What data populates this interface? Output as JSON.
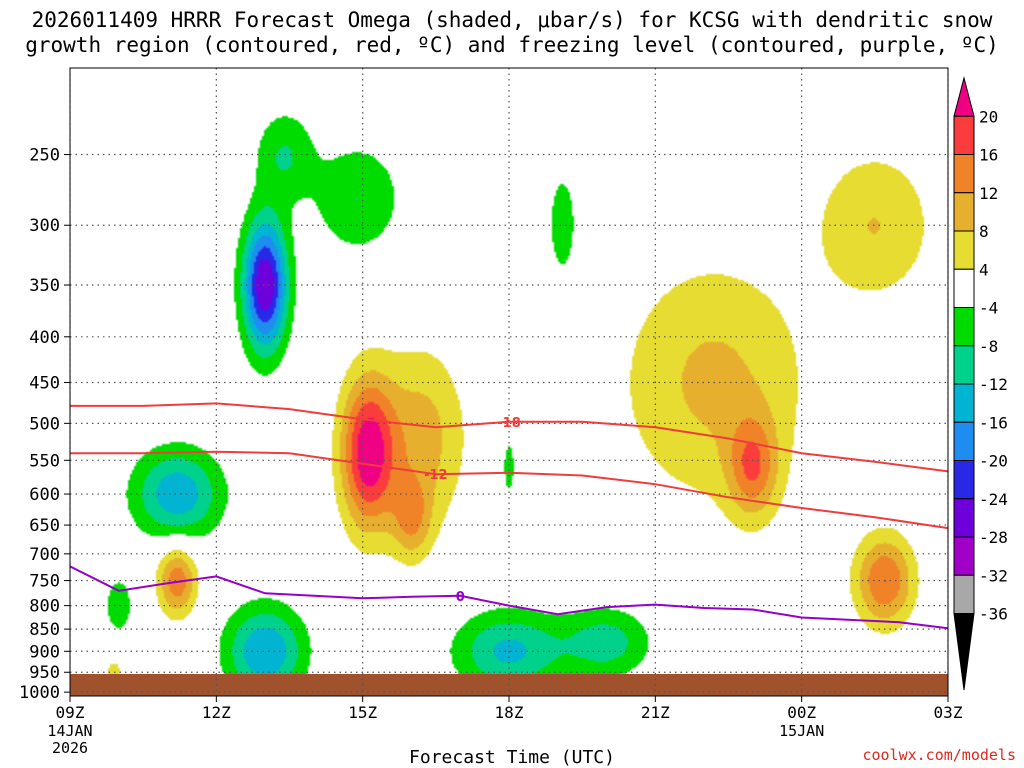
{
  "chart_data": {
    "type": "heatmap",
    "title_line1": "2026011409 HRRR Forecast Omega (shaded, μbar/s) for KCSG with dendritic snow",
    "title_line2": "growth region (contoured, red, ºC) and freezing level (contoured, purple, ºC)",
    "xlabel": "Forecast Time (UTC)",
    "ylabel": "",
    "x_ticks": [
      {
        "hour": 0,
        "label": "09Z",
        "date": "14JAN",
        "year": "2026"
      },
      {
        "hour": 3,
        "label": "12Z",
        "date": "",
        "year": ""
      },
      {
        "hour": 6,
        "label": "15Z",
        "date": "",
        "year": ""
      },
      {
        "hour": 9,
        "label": "18Z",
        "date": "",
        "year": ""
      },
      {
        "hour": 12,
        "label": "21Z",
        "date": "",
        "year": ""
      },
      {
        "hour": 15,
        "label": "00Z",
        "date": "15JAN",
        "year": ""
      },
      {
        "hour": 18,
        "label": "03Z",
        "date": "",
        "year": ""
      }
    ],
    "xlim": [
      0,
      18
    ],
    "y_ticks": [
      250,
      300,
      350,
      400,
      450,
      500,
      550,
      600,
      650,
      700,
      750,
      800,
      850,
      900,
      950,
      1000
    ],
    "ylim_hpa": [
      200,
      1010
    ],
    "colorbar": {
      "labels": [
        "20",
        "16",
        "12",
        "8",
        "4",
        "-4",
        "-8",
        "-12",
        "-16",
        "-20",
        "-24",
        "-28",
        "-32",
        "-36"
      ],
      "levels": [
        -40,
        -36,
        -32,
        -28,
        -24,
        -20,
        -16,
        -12,
        -8,
        -4,
        4,
        8,
        12,
        16,
        20,
        24
      ],
      "colors": [
        "#000000",
        "#a8a8a8",
        "#a000c8",
        "#6e00dc",
        "#2828e6",
        "#1e8cf0",
        "#00b4d2",
        "#00d28c",
        "#00dc00",
        "#ffffff",
        "#e6dc32",
        "#e6af2d",
        "#f08228",
        "#fa3c3c",
        "#f00082"
      ]
    },
    "omega_features": [
      {
        "hour": 4.0,
        "hpa": 350,
        "peak": -28,
        "sh": 0.45,
        "sp": 65
      },
      {
        "hour": 4.4,
        "hpa": 250,
        "peak": -8,
        "sh": 0.6,
        "sp": 45
      },
      {
        "hour": 5.9,
        "hpa": 280,
        "peak": -8,
        "sh": 0.9,
        "sp": 55
      },
      {
        "hour": 2.2,
        "hpa": 600,
        "peak": -15,
        "sh": 0.9,
        "sp": 45
      },
      {
        "hour": 4.0,
        "hpa": 900,
        "peak": -16,
        "sh": 0.8,
        "sp": 45
      },
      {
        "hour": 9.0,
        "hpa": 900,
        "peak": -13,
        "sh": 1.1,
        "sp": 40
      },
      {
        "hour": 11.0,
        "hpa": 880,
        "peak": -10,
        "sh": 0.9,
        "sp": 35
      },
      {
        "hour": 10.1,
        "hpa": 300,
        "peak": -7,
        "sh": 0.3,
        "sp": 55
      },
      {
        "hour": 9.0,
        "hpa": 560,
        "peak": -6,
        "sh": 0.15,
        "sp": 35
      },
      {
        "hour": 1.0,
        "hpa": 800,
        "peak": -7,
        "sh": 0.3,
        "sp": 30
      },
      {
        "hour": 6.1,
        "hpa": 540,
        "peak": 22,
        "sh": 0.55,
        "sp": 75
      },
      {
        "hour": 7.2,
        "hpa": 520,
        "peak": 10,
        "sh": 0.9,
        "sp": 90
      },
      {
        "hour": 7.0,
        "hpa": 640,
        "peak": 10,
        "sh": 0.4,
        "sp": 40
      },
      {
        "hour": 13.2,
        "hpa": 450,
        "peak": 9,
        "sh": 1.9,
        "sp": 120
      },
      {
        "hour": 14.0,
        "hpa": 560,
        "peak": 13,
        "sh": 0.5,
        "sp": 50
      },
      {
        "hour": 16.7,
        "hpa": 750,
        "peak": 16,
        "sh": 0.6,
        "sp": 45
      },
      {
        "hour": 16.5,
        "hpa": 300,
        "peak": 8,
        "sh": 1.2,
        "sp": 75
      },
      {
        "hour": 2.2,
        "hpa": 750,
        "peak": 15,
        "sh": 0.4,
        "sp": 35
      },
      {
        "hour": 0.9,
        "hpa": 945,
        "peak": 5,
        "sh": 0.25,
        "sp": 15
      }
    ],
    "isotherm_minus18": {
      "label": "-18",
      "hour": [
        0,
        1.5,
        3,
        4.5,
        6,
        7.5,
        9,
        10.5,
        12,
        13.5,
        15,
        16.5,
        18
      ],
      "hpa": [
        478,
        478,
        475,
        482,
        495,
        505,
        498,
        498,
        505,
        520,
        540,
        552,
        566
      ]
    },
    "isotherm_minus12": {
      "label": "-12",
      "hour": [
        0,
        1.5,
        3,
        4.5,
        6,
        7.5,
        9,
        10.5,
        12,
        13.5,
        15,
        16.5,
        18
      ],
      "hpa": [
        540,
        540,
        538,
        540,
        555,
        570,
        568,
        572,
        585,
        605,
        622,
        637,
        655
      ]
    },
    "freezing_level": {
      "label": "0",
      "hour": [
        0,
        1,
        2,
        3,
        4,
        5,
        6,
        7,
        8,
        9,
        10,
        11,
        12,
        13,
        14,
        15,
        16,
        17,
        18
      ],
      "hpa": [
        723,
        770,
        755,
        742,
        775,
        780,
        785,
        782,
        780,
        800,
        818,
        803,
        798,
        805,
        808,
        825,
        830,
        835,
        848
      ]
    },
    "credit": "coolwx.com/models"
  }
}
